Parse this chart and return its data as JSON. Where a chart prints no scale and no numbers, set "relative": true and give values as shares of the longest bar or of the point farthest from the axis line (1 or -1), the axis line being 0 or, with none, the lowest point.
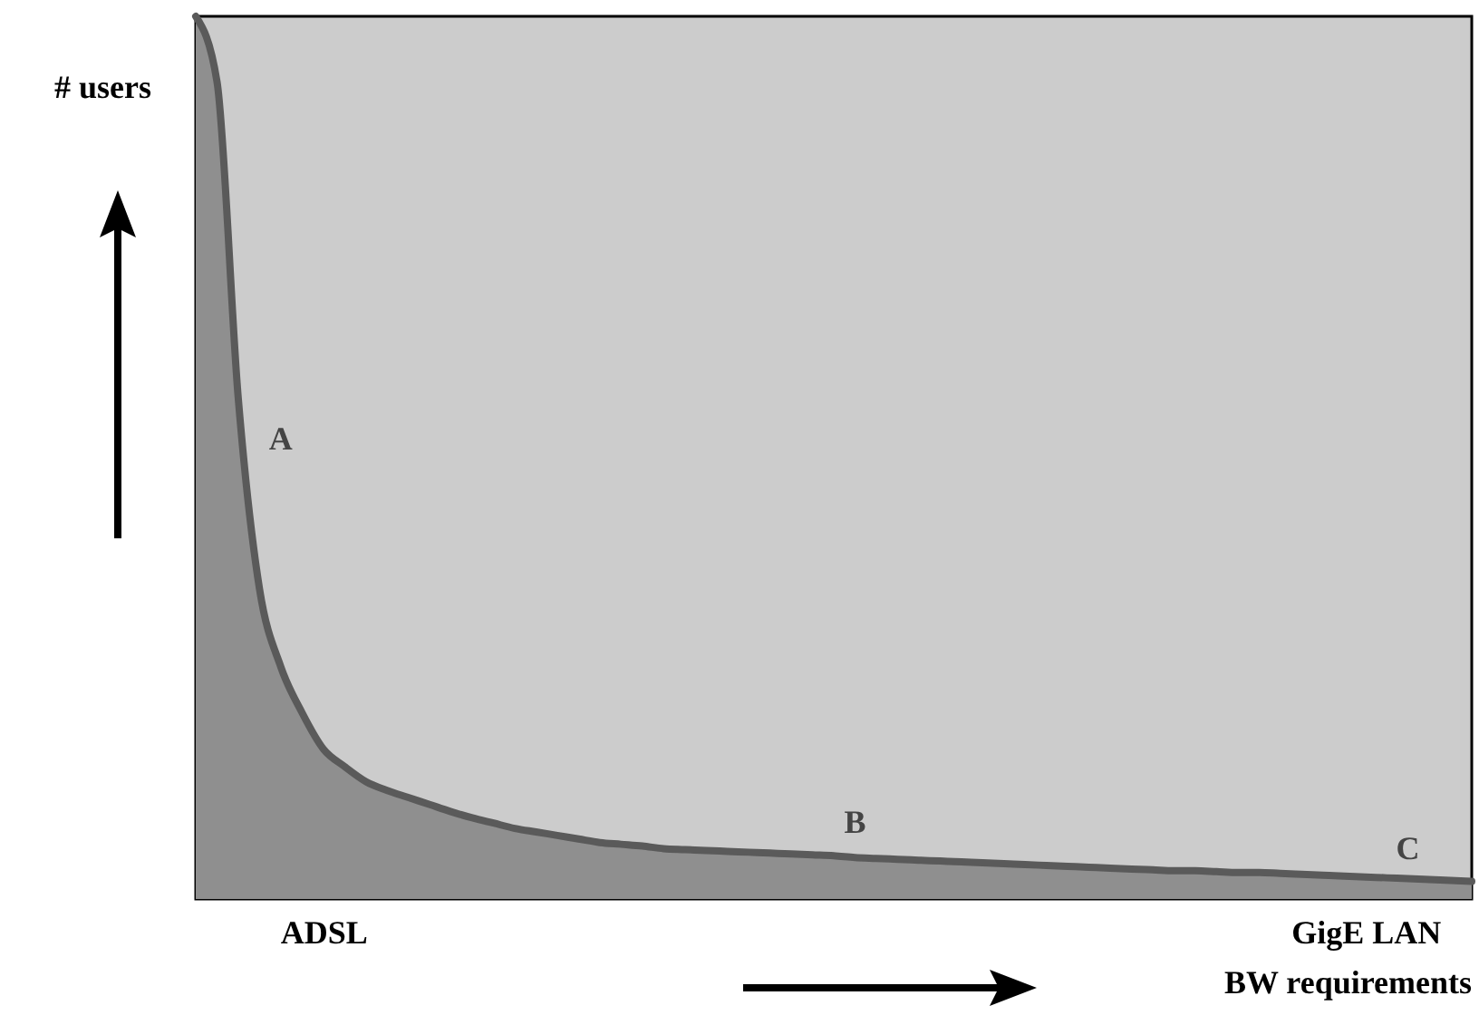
{
  "chart_data": {
    "type": "area",
    "relative": true,
    "xlabel": "BW requirements",
    "ylabel": "# users",
    "categories": [
      null,
      null,
      null,
      null,
      null,
      null,
      "ADSL",
      null,
      null,
      null,
      null,
      null,
      null,
      null,
      null,
      null,
      null,
      null,
      null,
      null,
      null,
      null,
      null,
      null,
      null,
      null,
      null,
      null,
      null,
      null,
      null,
      null,
      null,
      null,
      null,
      null,
      null,
      null,
      null,
      null,
      null,
      null,
      null,
      null,
      null,
      null,
      null,
      null,
      null,
      null,
      null,
      null,
      null,
      null,
      null,
      "GigE LAN",
      null,
      null,
      null,
      null,
      null
    ],
    "series": [
      {
        "color": "#5a5a5a",
        "values": [
          1.0,
          0.926,
          0.567,
          0.351,
          0.263,
          0.211,
          0.17,
          0.15,
          0.133,
          0.123,
          0.115,
          0.107,
          0.099,
          0.092,
          0.086,
          0.08,
          0.076,
          0.072,
          0.068,
          0.064,
          0.062,
          0.06,
          0.057,
          0.056,
          0.055,
          0.054,
          0.053,
          0.052,
          0.051,
          0.05,
          0.049,
          0.047,
          0.046,
          0.045,
          0.044,
          0.043,
          0.042,
          0.041,
          0.04,
          0.039,
          0.038,
          0.037,
          0.036,
          0.035,
          0.034,
          0.033,
          0.032,
          0.032,
          0.031,
          0.03,
          0.03,
          0.029,
          0.028,
          0.027,
          0.026,
          0.025,
          0.024,
          0.023,
          0.022,
          0.021,
          0.02
        ]
      }
    ],
    "annotations": [
      "A",
      "B",
      "C"
    ],
    "grid": false
  }
}
